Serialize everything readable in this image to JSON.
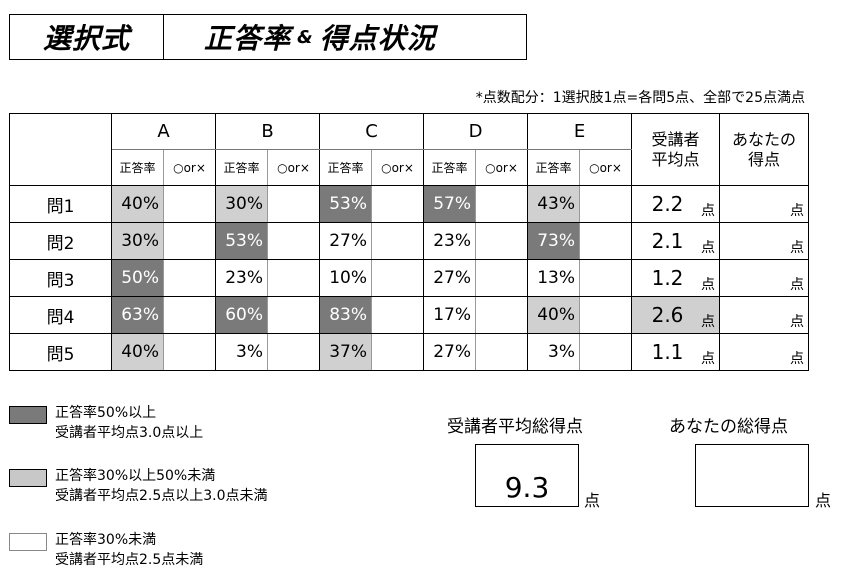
{
  "title": {
    "section": "選択式",
    "heading_part1": "正答率",
    "heading_amp": "&",
    "heading_part2": "得点状況"
  },
  "note": "*点数配分：1選択肢1点=各問5点、全部で25点満点",
  "table": {
    "choices": [
      "A",
      "B",
      "C",
      "D",
      "E"
    ],
    "sub_rate": "正答率",
    "sub_mark": "○or×",
    "avg_header_1": "受講者",
    "avg_header_2": "平均点",
    "your_header_1": "あなたの",
    "your_header_2": "得点",
    "unit": "点",
    "rows": [
      {
        "label": "問1",
        "rates": [
          "40%",
          "30%",
          "53%",
          "57%",
          "43%"
        ],
        "shades": [
          "light",
          "light",
          "dark",
          "dark",
          "light"
        ],
        "avg": "2.2",
        "avg_shade": "none"
      },
      {
        "label": "問2",
        "rates": [
          "30%",
          "53%",
          "27%",
          "23%",
          "73%"
        ],
        "shades": [
          "light",
          "dark",
          "none",
          "none",
          "dark"
        ],
        "avg": "2.1",
        "avg_shade": "none"
      },
      {
        "label": "問3",
        "rates": [
          "50%",
          "23%",
          "10%",
          "27%",
          "13%"
        ],
        "shades": [
          "dark",
          "none",
          "none",
          "none",
          "none"
        ],
        "avg": "1.2",
        "avg_shade": "none"
      },
      {
        "label": "問4",
        "rates": [
          "63%",
          "60%",
          "83%",
          "17%",
          "40%"
        ],
        "shades": [
          "dark",
          "dark",
          "dark",
          "none",
          "light"
        ],
        "avg": "2.6",
        "avg_shade": "light"
      },
      {
        "label": "問5",
        "rates": [
          "40%",
          "3%",
          "37%",
          "27%",
          "3%"
        ],
        "shades": [
          "light",
          "none",
          "light",
          "none",
          "none"
        ],
        "avg": "1.1",
        "avg_shade": "none"
      }
    ]
  },
  "legend": [
    {
      "shade": "dark",
      "line1": "正答率50%以上",
      "line2": "受講者平均点3.0点以上"
    },
    {
      "shade": "light",
      "line1": "正答率30%以上50%未満",
      "line2": "受講者平均点2.5点以上3.0点未満"
    },
    {
      "shade": "white",
      "line1": "正答率30%未満",
      "line2": "受講者平均点2.5点未満"
    }
  ],
  "totals": {
    "avg_label": "受講者平均総得点",
    "avg_value": "9.3",
    "your_label": "あなたの総得点",
    "your_value": "",
    "unit": "点"
  },
  "colors": {
    "dark_shade": "#7a7a7a",
    "light_shade": "#d0d0d0"
  }
}
